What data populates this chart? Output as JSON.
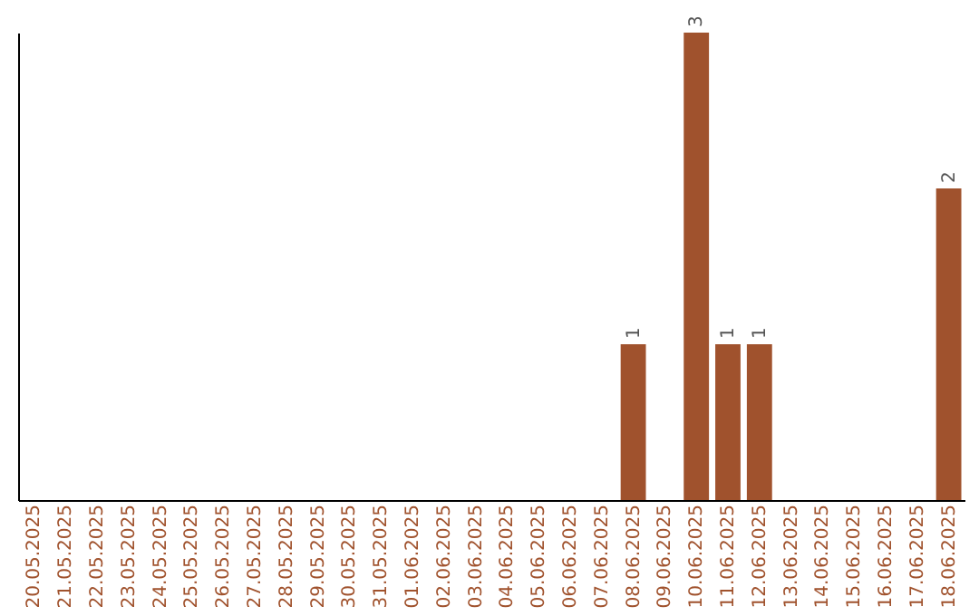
{
  "chart_data": {
    "type": "bar",
    "categories": [
      "20.05.2025",
      "21.05.2025",
      "22.05.2025",
      "23.05.2025",
      "24.05.2025",
      "25.05.2025",
      "26.05.2025",
      "27.05.2025",
      "28.05.2025",
      "29.05.2025",
      "30.05.2025",
      "31.05.2025",
      "01.06.2025",
      "02.06.2025",
      "03.06.2025",
      "04.06.2025",
      "05.06.2025",
      "06.06.2025",
      "07.06.2025",
      "08.06.2025",
      "09.06.2025",
      "10.06.2025",
      "11.06.2025",
      "12.06.2025",
      "13.06.2025",
      "14.06.2025",
      "15.06.2025",
      "16.06.2025",
      "17.06.2025",
      "18.06.2025"
    ],
    "values": [
      null,
      null,
      null,
      null,
      null,
      null,
      null,
      null,
      null,
      null,
      null,
      null,
      null,
      null,
      null,
      null,
      null,
      null,
      null,
      1,
      null,
      3,
      1,
      1,
      null,
      null,
      null,
      null,
      null,
      2
    ],
    "color": "#a0522d",
    "ylim": [
      0,
      3
    ],
    "data_labels": true,
    "tick_labels": "x"
  }
}
